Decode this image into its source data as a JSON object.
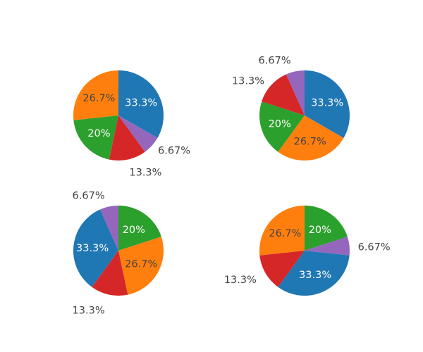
{
  "chart_data": [
    {
      "type": "pie",
      "slices": [
        {
          "value": 5,
          "label": "33.3%",
          "color": "#1f77b4"
        },
        {
          "value": 1,
          "label": "6.67%",
          "color": "#9467bd"
        },
        {
          "value": 2,
          "label": "13.3%",
          "color": "#d62728"
        },
        {
          "value": 3,
          "label": "20%",
          "color": "#2ca02c"
        },
        {
          "value": 4,
          "label": "26.7%",
          "color": "#ff7f0e"
        }
      ]
    },
    {
      "type": "pie",
      "slices": [
        {
          "value": 5,
          "label": "33.3%",
          "color": "#1f77b4"
        },
        {
          "value": 4,
          "label": "26.7%",
          "color": "#ff7f0e"
        },
        {
          "value": 3,
          "label": "20%",
          "color": "#2ca02c"
        },
        {
          "value": 2,
          "label": "13.3%",
          "color": "#d62728"
        },
        {
          "value": 1,
          "label": "6.67%",
          "color": "#9467bd"
        }
      ]
    },
    {
      "type": "pie",
      "slices": [
        {
          "value": 3,
          "label": "20%",
          "color": "#2ca02c"
        },
        {
          "value": 4,
          "label": "26.7%",
          "color": "#ff7f0e"
        },
        {
          "value": 2,
          "label": "13.3%",
          "color": "#d62728"
        },
        {
          "value": 5,
          "label": "33.3%",
          "color": "#1f77b4"
        },
        {
          "value": 1,
          "label": "6.67%",
          "color": "#9467bd"
        }
      ]
    },
    {
      "type": "pie",
      "slices": [
        {
          "value": 3,
          "label": "20%",
          "color": "#2ca02c"
        },
        {
          "value": 1,
          "label": "6.67%",
          "color": "#9467bd"
        },
        {
          "value": 5,
          "label": "33.3%",
          "color": "#1f77b4"
        },
        {
          "value": 2,
          "label": "13.3%",
          "color": "#d62728"
        },
        {
          "value": 4,
          "label": "26.7%",
          "color": "#ff7f0e"
        }
      ]
    }
  ]
}
